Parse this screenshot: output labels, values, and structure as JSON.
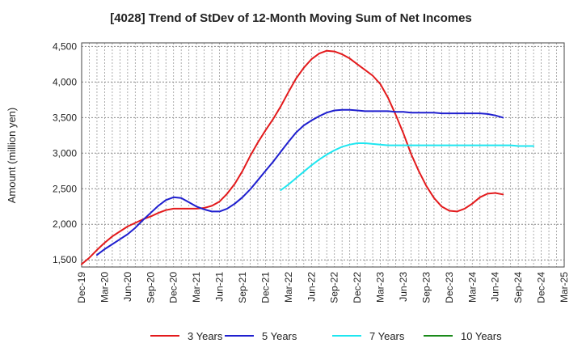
{
  "chart_data": {
    "type": "line",
    "title": "[4028]  Trend of StDev of 12-Month Moving Sum of Net Incomes",
    "xlabel": "",
    "ylabel": "Amount (million yen)",
    "ylim": [
      1400,
      4550
    ],
    "yticks": [
      1500,
      2000,
      2500,
      3000,
      3500,
      4000,
      4500
    ],
    "ytick_labels": [
      "1,500",
      "2,000",
      "2,500",
      "3,000",
      "3,500",
      "4,000",
      "4,500"
    ],
    "x_range": [
      "2019-12",
      "2025-03"
    ],
    "xtick_labels": [
      "Dec-19",
      "Mar-20",
      "Jun-20",
      "Sep-20",
      "Dec-20",
      "Mar-21",
      "Jun-21",
      "Sep-21",
      "Dec-21",
      "Mar-22",
      "Jun-22",
      "Sep-22",
      "Dec-22",
      "Mar-23",
      "Jun-23",
      "Sep-23",
      "Dec-23",
      "Mar-24",
      "Jun-24",
      "Sep-24",
      "Dec-24",
      "Mar-25"
    ],
    "grid": true,
    "legend_position": "bottom",
    "series": [
      {
        "name": "3 Years",
        "color": "#e31a1c",
        "start": "2019-12",
        "values": [
          1440,
          1530,
          1640,
          1740,
          1830,
          1900,
          1970,
          2020,
          2070,
          2110,
          2160,
          2200,
          2220,
          2220,
          2220,
          2220,
          2230,
          2260,
          2320,
          2430,
          2570,
          2750,
          2960,
          3150,
          3320,
          3480,
          3660,
          3860,
          4050,
          4200,
          4320,
          4400,
          4440,
          4430,
          4390,
          4330,
          4250,
          4170,
          4090,
          3970,
          3780,
          3540,
          3280,
          2990,
          2750,
          2540,
          2370,
          2250,
          2190,
          2180,
          2220,
          2290,
          2380,
          2430,
          2440,
          2420
        ]
      },
      {
        "name": "5 Years",
        "color": "#1f1fcf",
        "start": "2020-02",
        "values": [
          1570,
          1650,
          1720,
          1790,
          1860,
          1950,
          2060,
          2160,
          2260,
          2340,
          2380,
          2370,
          2310,
          2250,
          2210,
          2180,
          2180,
          2220,
          2290,
          2380,
          2490,
          2620,
          2750,
          2880,
          3020,
          3160,
          3290,
          3390,
          3460,
          3520,
          3570,
          3600,
          3610,
          3610,
          3600,
          3590,
          3590,
          3590,
          3590,
          3580,
          3580,
          3570,
          3570,
          3570,
          3570,
          3560,
          3560,
          3560,
          3560,
          3560,
          3560,
          3550,
          3530,
          3500
        ]
      },
      {
        "name": "7 Years",
        "color": "#1ee6f0",
        "start": "2022-02",
        "values": [
          2480,
          2560,
          2650,
          2740,
          2830,
          2910,
          2980,
          3040,
          3090,
          3120,
          3140,
          3140,
          3130,
          3120,
          3110,
          3110,
          3110,
          3110,
          3110,
          3110,
          3110,
          3110,
          3110,
          3110,
          3110,
          3110,
          3110,
          3110,
          3110,
          3110,
          3110,
          3100,
          3100,
          3100
        ]
      },
      {
        "name": "10 Years",
        "color": "#1a8a1a",
        "start": "",
        "values": []
      }
    ]
  }
}
